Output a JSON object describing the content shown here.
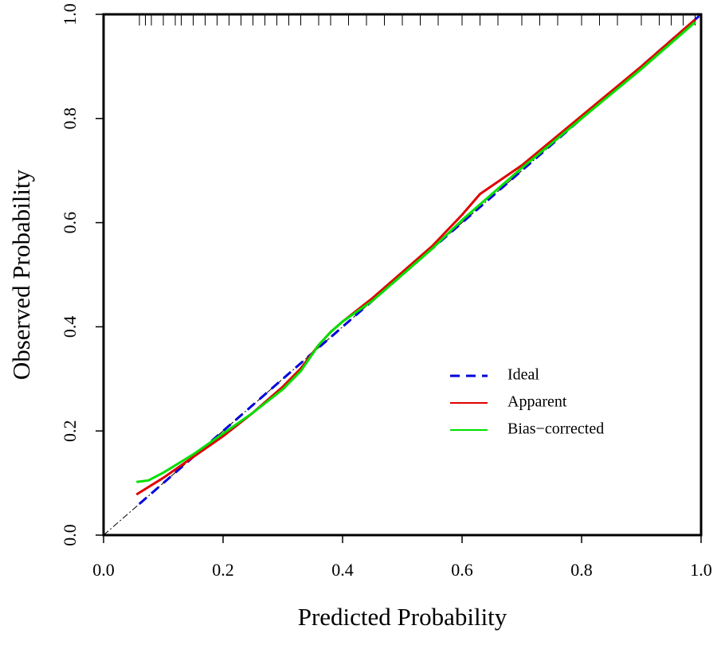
{
  "chart_data": {
    "type": "line",
    "xlabel": "Predicted Probability",
    "ylabel": "Observed Probability",
    "xlim": [
      0,
      1
    ],
    "ylim": [
      0,
      1
    ],
    "xticks": [
      {
        "value": 0,
        "label": "0.0"
      },
      {
        "value": 0.2,
        "label": "0.2"
      },
      {
        "value": 0.4,
        "label": "0.4"
      },
      {
        "value": 0.6,
        "label": "0.6"
      },
      {
        "value": 0.8,
        "label": "0.8"
      },
      {
        "value": 1,
        "label": "1.0"
      }
    ],
    "yticks": [
      {
        "value": 0,
        "label": "0.0"
      },
      {
        "value": 0.2,
        "label": "0.2"
      },
      {
        "value": 0.4,
        "label": "0.4"
      },
      {
        "value": 0.6,
        "label": "0.6"
      },
      {
        "value": 0.8,
        "label": "0.8"
      },
      {
        "value": 1,
        "label": "1.0"
      }
    ],
    "reference_diagonal": true,
    "rug": [
      0.06,
      0.07,
      0.08,
      0.1,
      0.12,
      0.13,
      0.15,
      0.17,
      0.19,
      0.21,
      0.23,
      0.25,
      0.27,
      0.29,
      0.31,
      0.33,
      0.36,
      0.38,
      0.41,
      0.44,
      0.47,
      0.5,
      0.53,
      0.56,
      0.6,
      0.63,
      0.66,
      0.7,
      0.73,
      0.76,
      0.8,
      0.83,
      0.86,
      0.9,
      0.93,
      0.95,
      0.97,
      0.99
    ],
    "series": [
      {
        "name": "Ideal",
        "color": "#0000dd",
        "linestyle": "dashed",
        "x": [
          0.06,
          1
        ],
        "values": [
          0.06,
          1
        ]
      },
      {
        "name": "Apparent",
        "color": "#e00000",
        "linestyle": "solid",
        "x": [
          0.055,
          0.1,
          0.15,
          0.2,
          0.25,
          0.3,
          0.33,
          0.36,
          0.38,
          0.4,
          0.45,
          0.5,
          0.55,
          0.6,
          0.63,
          0.7,
          0.8,
          0.9,
          0.99
        ],
        "values": [
          0.078,
          0.11,
          0.15,
          0.19,
          0.235,
          0.285,
          0.32,
          0.365,
          0.39,
          0.41,
          0.455,
          0.505,
          0.555,
          0.615,
          0.655,
          0.71,
          0.805,
          0.9,
          0.99
        ]
      },
      {
        "name": "Bias−corrected",
        "color": "#00e000",
        "linestyle": "solid",
        "x": [
          0.055,
          0.075,
          0.1,
          0.15,
          0.2,
          0.25,
          0.3,
          0.33,
          0.36,
          0.38,
          0.4,
          0.45,
          0.5,
          0.55,
          0.6,
          0.65,
          0.7,
          0.8,
          0.9,
          0.99
        ],
        "values": [
          0.102,
          0.105,
          0.12,
          0.155,
          0.195,
          0.235,
          0.28,
          0.315,
          0.365,
          0.39,
          0.41,
          0.45,
          0.5,
          0.55,
          0.605,
          0.655,
          0.705,
          0.8,
          0.895,
          0.985
        ]
      }
    ]
  }
}
